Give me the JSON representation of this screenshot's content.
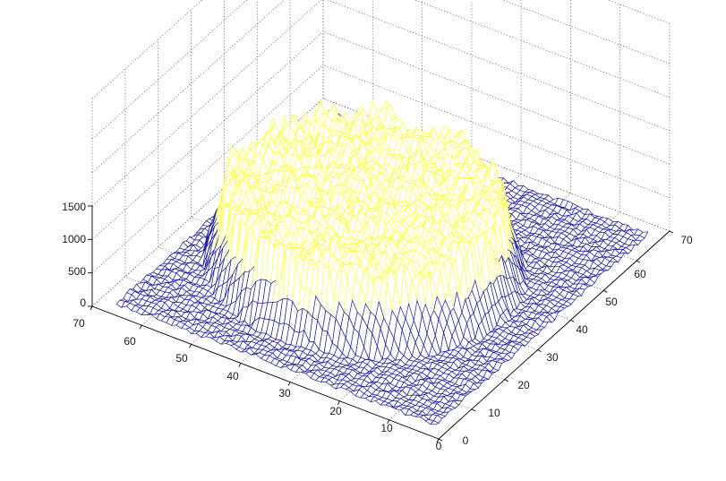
{
  "chart_data": {
    "type": "surface",
    "title": "",
    "xlabel": "",
    "ylabel": "",
    "zlabel": "",
    "grid": true,
    "axes": {
      "x": {
        "ticks": [
          0,
          10,
          20,
          30,
          40,
          50,
          60,
          70
        ],
        "lim": [
          0,
          70
        ]
      },
      "y": {
        "ticks": [
          0,
          10,
          20,
          30,
          40,
          50,
          60,
          70
        ],
        "lim": [
          0,
          70
        ]
      },
      "z": {
        "ticks": [
          0,
          500,
          1000,
          1500
        ],
        "lim": [
          0,
          1500
        ]
      }
    },
    "surface": {
      "grid_size": 64,
      "background_level": 60,
      "plateau_level": 1150,
      "plateau_center": [
        33,
        37
      ],
      "plateau_radii": [
        22,
        25
      ],
      "colormap": [
        "#1c1ca8",
        "#ffff3a"
      ]
    }
  }
}
